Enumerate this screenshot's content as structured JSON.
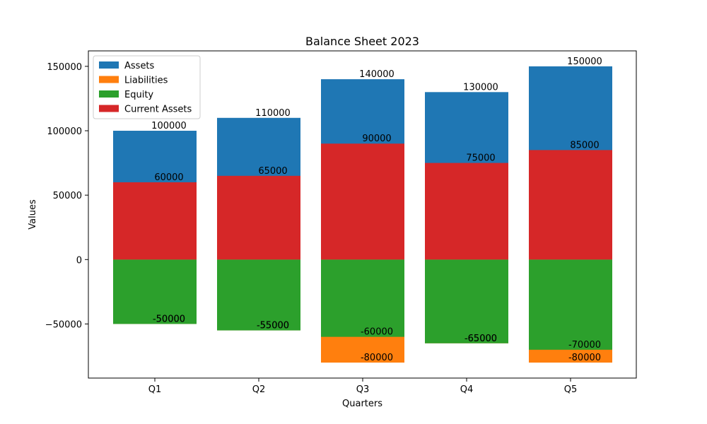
{
  "chart_data": {
    "type": "bar",
    "title": "Balance Sheet 2023",
    "xlabel": "Quarters",
    "ylabel": "Values",
    "categories": [
      "Q1",
      "Q2",
      "Q3",
      "Q4",
      "Q5"
    ],
    "ylim": [
      -92000,
      162000
    ],
    "yticks": [
      -50000,
      0,
      50000,
      100000,
      150000
    ],
    "ytick_labels": [
      "−50000",
      "0",
      "50000",
      "100000",
      "150000"
    ],
    "legend_position": "top-left",
    "grid": false,
    "series": [
      {
        "name": "Assets",
        "color": "#1f77b4",
        "values": [
          100000,
          110000,
          140000,
          130000,
          150000
        ]
      },
      {
        "name": "Liabilities",
        "color": "#ff7f0e",
        "values": [
          -50000,
          -55000,
          -80000,
          -65000,
          -80000
        ]
      },
      {
        "name": "Equity",
        "color": "#2ca02c",
        "values": [
          -50000,
          -55000,
          -60000,
          -65000,
          -70000
        ]
      },
      {
        "name": "Current Assets",
        "color": "#d62728",
        "values": [
          60000,
          65000,
          90000,
          75000,
          85000
        ]
      }
    ],
    "value_labels": [
      [
        "100000",
        "110000",
        "140000",
        "130000",
        "150000"
      ],
      [
        "-50000",
        "-55000",
        "-80000",
        "-65000",
        "-80000"
      ],
      [
        "-50000",
        "-55000",
        "-60000",
        "-65000",
        "-70000"
      ],
      [
        "60000",
        "65000",
        "90000",
        "75000",
        "85000"
      ]
    ]
  }
}
